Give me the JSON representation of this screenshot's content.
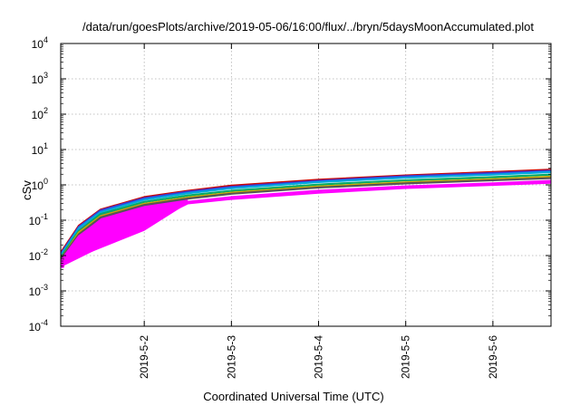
{
  "chart_data": {
    "type": "line",
    "title": "/data/run/goesPlots/archive/2019-05-06/16:00/flux/../bryn/5daysMoonAccumulated.plot",
    "xlabel": "Coordinated Universal Time (UTC)",
    "ylabel": "cSv",
    "yscale": "log",
    "ylim": [
      0.0001,
      10000
    ],
    "xlim": [
      "2019-05-01T01:00",
      "2019-05-06T16:00"
    ],
    "x_ticks": [
      "2019-5-2",
      "2019-5-3",
      "2019-5-4",
      "2019-5-5",
      "2019-5-6"
    ],
    "y_ticks": [
      {
        "base": "10",
        "exp": "-4",
        "value": 0.0001
      },
      {
        "base": "10",
        "exp": "-3",
        "value": 0.001
      },
      {
        "base": "10",
        "exp": "-2",
        "value": 0.01
      },
      {
        "base": "10",
        "exp": "-1",
        "value": 0.1
      },
      {
        "base": "10",
        "exp": "0",
        "value": 1
      },
      {
        "base": "10",
        "exp": "1",
        "value": 10
      },
      {
        "base": "10",
        "exp": "2",
        "value": 100
      },
      {
        "base": "10",
        "exp": "3",
        "value": 1000
      },
      {
        "base": "10",
        "exp": "4",
        "value": 10000
      }
    ],
    "grid": true,
    "legend": "none",
    "series": [
      {
        "color": "#cc0000",
        "x": [
          "2019-05-01T01:00",
          "2019-05-01T06:00",
          "2019-05-01T12:00",
          "2019-05-02T00:00",
          "2019-05-02T12:00",
          "2019-05-03T00:00",
          "2019-05-04T00:00",
          "2019-05-05T00:00",
          "2019-05-06T00:00",
          "2019-05-06T16:00"
        ],
        "y": [
          0.012,
          0.07,
          0.2,
          0.45,
          0.68,
          0.95,
          1.4,
          1.85,
          2.3,
          2.7
        ]
      },
      {
        "color": "#3344dd",
        "x": [
          "2019-05-01T01:00",
          "2019-05-01T06:00",
          "2019-05-01T12:00",
          "2019-05-02T00:00",
          "2019-05-02T12:00",
          "2019-05-03T00:00",
          "2019-05-04T00:00",
          "2019-05-05T00:00",
          "2019-05-06T00:00",
          "2019-05-06T16:00"
        ],
        "y": [
          0.011,
          0.065,
          0.19,
          0.42,
          0.64,
          0.88,
          1.3,
          1.75,
          2.15,
          2.5
        ]
      },
      {
        "color": "#00aadd",
        "x": [
          "2019-05-01T01:00",
          "2019-05-01T06:00",
          "2019-05-01T12:00",
          "2019-05-02T00:00",
          "2019-05-02T12:00",
          "2019-05-03T00:00",
          "2019-05-04T00:00",
          "2019-05-05T00:00",
          "2019-05-06T00:00",
          "2019-05-06T16:00"
        ],
        "y": [
          0.01,
          0.06,
          0.17,
          0.38,
          0.58,
          0.8,
          1.2,
          1.6,
          1.95,
          2.3
        ]
      },
      {
        "color": "#00aa66",
        "x": [
          "2019-05-01T01:00",
          "2019-05-01T06:00",
          "2019-05-01T12:00",
          "2019-05-02T00:00",
          "2019-05-02T12:00",
          "2019-05-03T00:00",
          "2019-05-04T00:00",
          "2019-05-05T00:00",
          "2019-05-06T00:00",
          "2019-05-06T16:00"
        ],
        "y": [
          0.009,
          0.05,
          0.15,
          0.33,
          0.5,
          0.68,
          1.02,
          1.35,
          1.65,
          1.95
        ]
      },
      {
        "color": "#ccaa00",
        "x": [
          "2019-05-01T01:00",
          "2019-05-01T06:00",
          "2019-05-01T12:00",
          "2019-05-02T00:00",
          "2019-05-02T12:00",
          "2019-05-03T00:00",
          "2019-05-04T00:00",
          "2019-05-05T00:00",
          "2019-05-06T00:00",
          "2019-05-06T16:00"
        ],
        "y": [
          0.008,
          0.045,
          0.13,
          0.29,
          0.44,
          0.6,
          0.9,
          1.18,
          1.45,
          1.7
        ]
      },
      {
        "color": "#555555",
        "x": [
          "2019-05-01T01:00",
          "2019-05-01T06:00",
          "2019-05-01T12:00",
          "2019-05-02T00:00",
          "2019-05-02T12:00",
          "2019-05-03T00:00",
          "2019-05-04T00:00",
          "2019-05-05T00:00",
          "2019-05-06T00:00",
          "2019-05-06T16:00"
        ],
        "y": [
          0.008,
          0.04,
          0.12,
          0.27,
          0.41,
          0.56,
          0.84,
          1.1,
          1.35,
          1.55
        ]
      },
      {
        "color": "#ff00ff",
        "x": [
          "2019-05-01T01:00",
          "2019-05-01T06:00",
          "2019-05-01T12:00",
          "2019-05-02T00:00",
          "2019-05-02T12:00",
          "2019-05-03T00:00",
          "2019-05-04T00:00",
          "2019-05-05T00:00",
          "2019-05-06T00:00",
          "2019-05-06T16:00"
        ],
        "y": [
          0.007,
          0.035,
          0.1,
          0.22,
          0.33,
          0.45,
          0.68,
          0.9,
          1.1,
          1.3
        ]
      },
      {
        "color": "#ff00ff",
        "x": [
          "2019-05-01T01:00",
          "2019-05-02T12:00",
          "2019-05-03T00:00",
          "2019-05-04T00:00",
          "2019-05-05T00:00",
          "2019-05-06T00:00",
          "2019-05-06T16:00"
        ],
        "y": [
          0.005,
          0.3,
          0.4,
          0.6,
          0.82,
          1.0,
          1.15
        ]
      }
    ],
    "fill_band": {
      "color": "#ff00ff",
      "x": [
        "2019-05-01T01:00",
        "2019-05-01T06:00",
        "2019-05-01T12:00",
        "2019-05-02T00:00",
        "2019-05-02T12:00"
      ],
      "upper": [
        0.012,
        0.07,
        0.16,
        0.3,
        0.42
      ],
      "lower": [
        0.005,
        0.009,
        0.016,
        0.05,
        0.3
      ]
    }
  }
}
